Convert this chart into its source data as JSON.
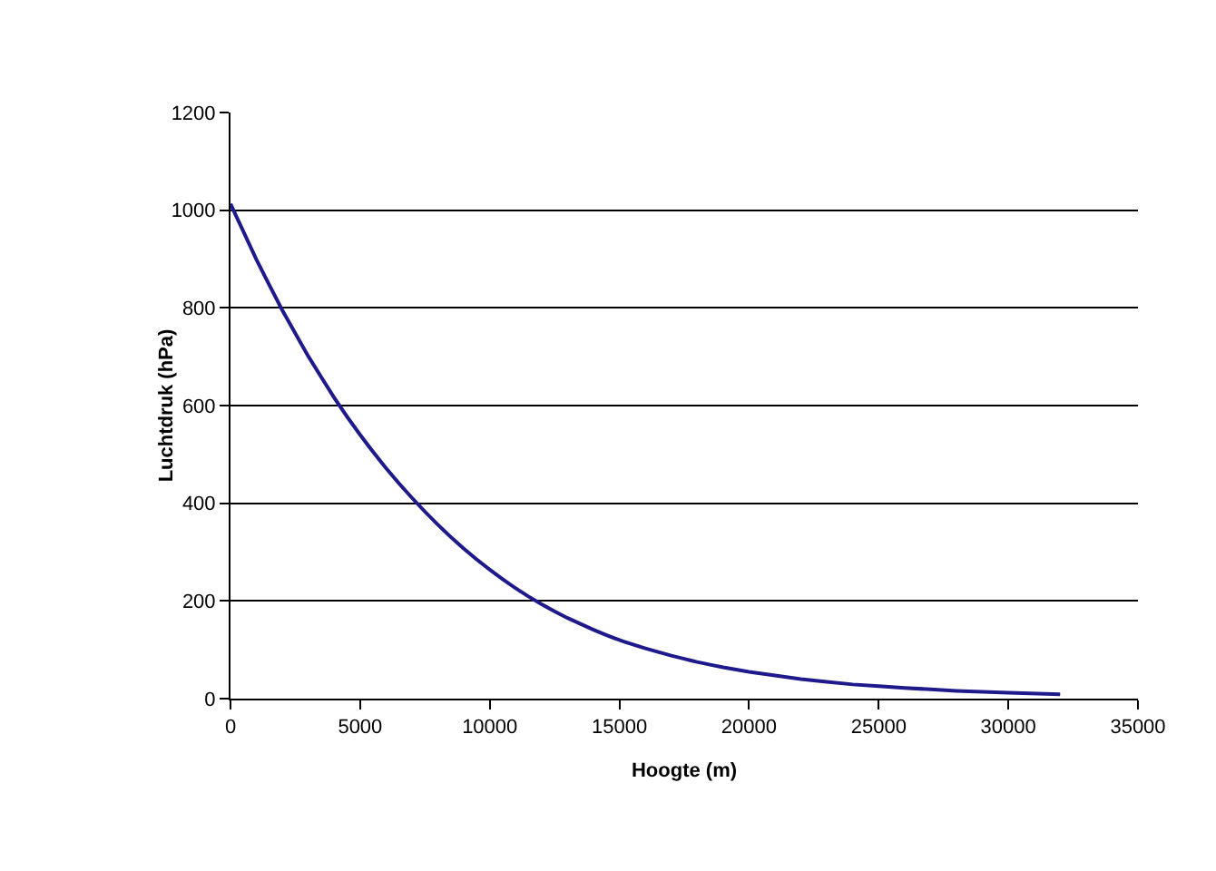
{
  "chart_data": {
    "type": "line",
    "xlabel": "Hoogte (m)",
    "ylabel": "Luchtdruk (hPa)",
    "x": [
      0,
      1000,
      2000,
      3000,
      4000,
      5000,
      6000,
      7000,
      8000,
      9000,
      10000,
      11000,
      12000,
      13000,
      14000,
      15000,
      16000,
      17000,
      18000,
      19000,
      20000,
      22000,
      24000,
      26000,
      28000,
      30000,
      32000
    ],
    "series": [
      {
        "color": "#1f1a8c",
        "values": [
          1013,
          899,
          795,
          701,
          616,
          540,
          472,
          411,
          356,
          307,
          264,
          226,
          193,
          165,
          141,
          120,
          103,
          88,
          75,
          64,
          55,
          40,
          29,
          22,
          16,
          12,
          9
        ]
      }
    ],
    "xlim": [
      0,
      35000
    ],
    "xticks": [
      0,
      5000,
      10000,
      15000,
      20000,
      25000,
      30000,
      35000
    ],
    "ylim": [
      0,
      1200
    ],
    "yticks": [
      0,
      200,
      400,
      600,
      800,
      1000,
      1200
    ],
    "grid": "y",
    "legend": false,
    "marker": "none",
    "line_style": "solid"
  }
}
